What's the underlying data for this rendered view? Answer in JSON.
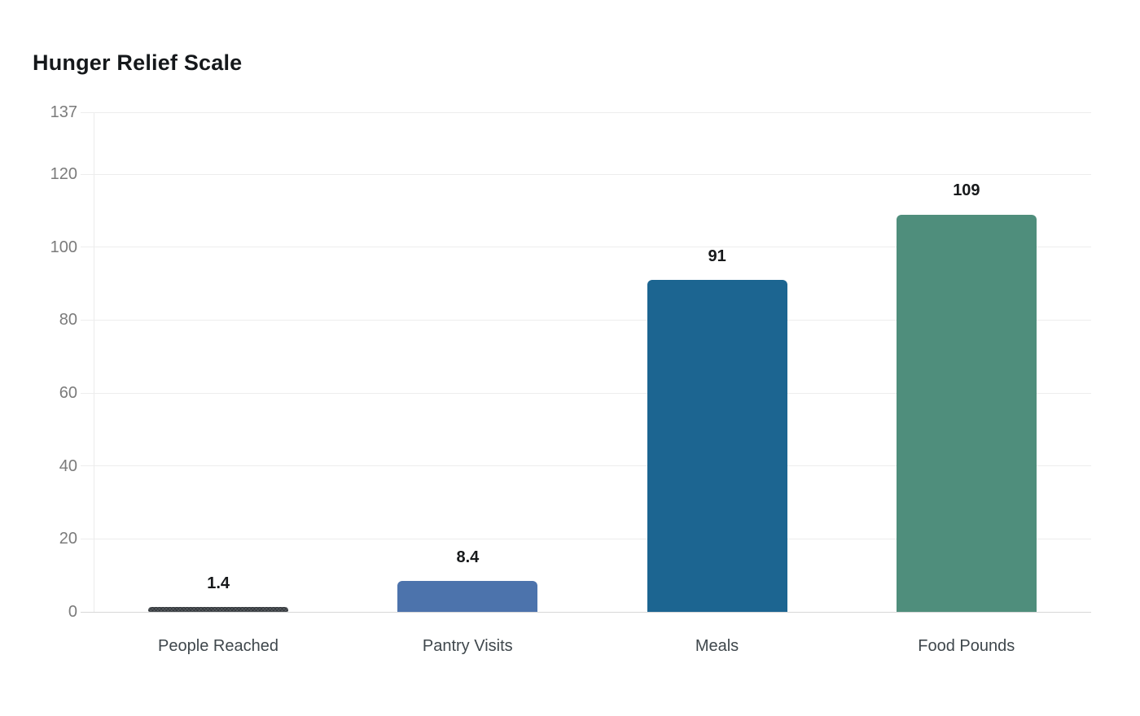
{
  "header": {
    "title": "Hunger Relief Scale"
  },
  "chart_data": {
    "type": "bar",
    "title": "Hunger Relief Scale",
    "categories": [
      "People Reached",
      "Pantry Visits",
      "Meals",
      "Food Pounds"
    ],
    "values": [
      1.4,
      8.4,
      91,
      109
    ],
    "value_labels": [
      "1.4",
      "8.4",
      "91",
      "109"
    ],
    "bar_colors": [
      "#33383c",
      "#4c73ac",
      "#1c6591",
      "#4f8e7c"
    ],
    "bar_patterns": [
      "crosshatch",
      "solid",
      "solid",
      "solid"
    ],
    "xlabel": "",
    "ylabel": "",
    "ylim": [
      0,
      137
    ],
    "yticks": [
      0,
      20,
      40,
      60,
      80,
      100,
      120,
      137
    ],
    "grid": true,
    "legend": false,
    "background_color": "#ffffff",
    "gridline_color": "#ededed",
    "baseline_color": "#d7d7d7",
    "tick_label_color": "#7b7b7b",
    "category_label_color": "#3f474c",
    "value_label_color": "#17191b",
    "title_color": "#15181b"
  }
}
